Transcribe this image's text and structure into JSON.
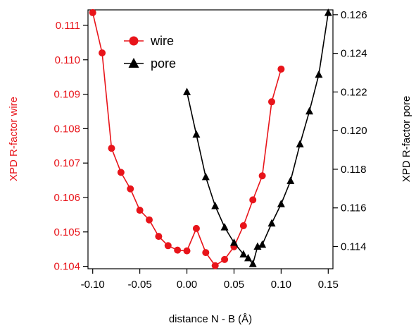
{
  "chart_data": {
    "type": "line",
    "xlabel": "distance N - B (Å)",
    "x_ticks": [
      "-0.10",
      "-0.05",
      "0.00",
      "0.05",
      "0.10",
      "0.15"
    ],
    "xlim": [
      -0.105,
      0.155
    ],
    "axes": {
      "left": {
        "label": "XPD R-factor wire",
        "color": "#e8141a",
        "ylim": [
          0.10393,
          0.11145
        ],
        "ticks": [
          "0.104",
          "0.105",
          "0.106",
          "0.107",
          "0.108",
          "0.109",
          "0.110",
          "0.111"
        ]
      },
      "right": {
        "label": "XPD R-factor pore",
        "color": "#000000",
        "ylim": [
          0.11285,
          0.12625
        ],
        "ticks": [
          "0.114",
          "0.116",
          "0.118",
          "0.120",
          "0.122",
          "0.124",
          "0.126"
        ]
      }
    },
    "legend": {
      "placement": "top-left"
    },
    "series": [
      {
        "name": "wire",
        "axis": "left",
        "marker": "circle",
        "color": "#e8141a",
        "x": [
          -0.1,
          -0.09,
          -0.08,
          -0.07,
          -0.06,
          -0.05,
          -0.04,
          -0.03,
          -0.02,
          -0.01,
          0.0,
          0.01,
          0.02,
          0.03,
          0.04,
          0.05,
          0.06,
          0.07,
          0.08,
          0.09,
          0.1
        ],
        "y": [
          0.11137,
          0.1102,
          0.10743,
          0.10673,
          0.10625,
          0.10563,
          0.10535,
          0.10487,
          0.1046,
          0.10447,
          0.10445,
          0.1051,
          0.1044,
          0.10402,
          0.1042,
          0.10457,
          0.10518,
          0.10593,
          0.10663,
          0.10878,
          0.10973
        ]
      },
      {
        "name": "pore",
        "axis": "right",
        "marker": "triangle",
        "color": "#000000",
        "x": [
          0.0,
          0.01,
          0.02,
          0.03,
          0.04,
          0.05,
          0.06,
          0.065,
          0.07,
          0.075,
          0.08,
          0.09,
          0.1,
          0.11,
          0.12,
          0.13,
          0.14,
          0.15
        ],
        "y": [
          0.122,
          0.1198,
          0.1176,
          0.1161,
          0.115,
          0.1142,
          0.1136,
          0.1134,
          0.1131,
          0.114,
          0.1141,
          0.1152,
          0.1162,
          0.1174,
          0.1193,
          0.121,
          0.1229,
          0.1261
        ]
      }
    ]
  }
}
